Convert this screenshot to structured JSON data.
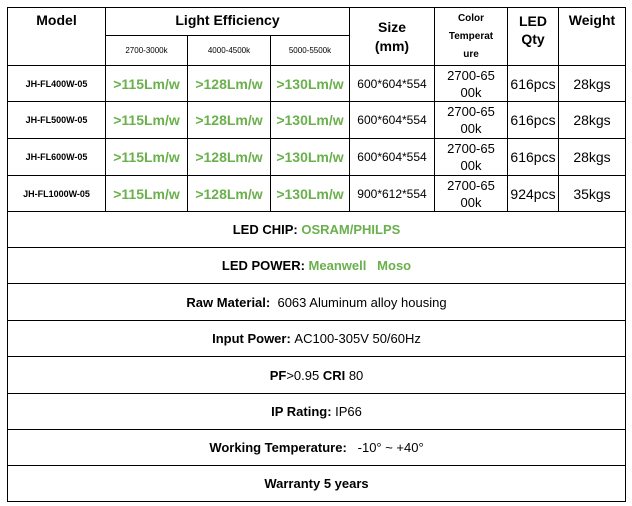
{
  "headers": {
    "model": "Model",
    "light_efficiency": "Light Efficiency",
    "size_line1": "Size",
    "size_line2": "(mm)",
    "color_temp_line1": "Color",
    "color_temp_line2": "Temperat",
    "color_temp_line3": "ure",
    "led_qty_line1": "LED",
    "led_qty_line2": "Qty",
    "weight": "Weight",
    "sub_1": "2700-3000k",
    "sub_2": "4000-4500k",
    "sub_3": "5000-5500k"
  },
  "rows": [
    {
      "model": "JH-FL400W-05",
      "eff1": ">115Lm/w",
      "eff2": ">128Lm/w",
      "eff3": ">130Lm/w",
      "size": "600*604*554",
      "temp_line1": "2700-65",
      "temp_line2": "00k",
      "qty": "616pcs",
      "weight": "28kgs"
    },
    {
      "model": "JH-FL500W-05",
      "eff1": ">115Lm/w",
      "eff2": ">128Lm/w",
      "eff3": ">130Lm/w",
      "size": "600*604*554",
      "temp_line1": "2700-65",
      "temp_line2": "00k",
      "qty": "616pcs",
      "weight": "28kgs"
    },
    {
      "model": "JH-FL600W-05",
      "eff1": ">115Lm/w",
      "eff2": ">128Lm/w",
      "eff3": ">130Lm/w",
      "size": "600*604*554",
      "temp_line1": "2700-65",
      "temp_line2": "00k",
      "qty": "616pcs",
      "weight": "28kgs"
    },
    {
      "model": "JH-FL1000W-05",
      "eff1": ">115Lm/w",
      "eff2": ">128Lm/w",
      "eff3": ">130Lm/w",
      "size": "900*612*554",
      "temp_line1": "2700-65",
      "temp_line2": "00k",
      "qty": "924pcs",
      "weight": "35kgs"
    }
  ],
  "info": {
    "led_chip_label": "LED CHIP: ",
    "led_chip_value": "OSRAM/PHILPS",
    "led_power_label": "LED POWER: ",
    "led_power_value": "Meanwell   Moso",
    "raw_material_label": "Raw Material:",
    "raw_material_value": "  6063 Aluminum alloy housing",
    "input_power_label": "Input Power: ",
    "input_power_value": "AC100-305V 50/60Hz",
    "pf_label": "PF",
    "pf_value": ">0.95 ",
    "cri_label": "CRI",
    "cri_value": " 80",
    "ip_label": "IP Rating: ",
    "ip_value": "IP66",
    "working_temp_label": "Working Temperature:",
    "working_temp_value": "   -10° ~ +40°",
    "warranty": "Warranty 5 years"
  },
  "colors": {
    "accent_green": "#6ab04c"
  }
}
